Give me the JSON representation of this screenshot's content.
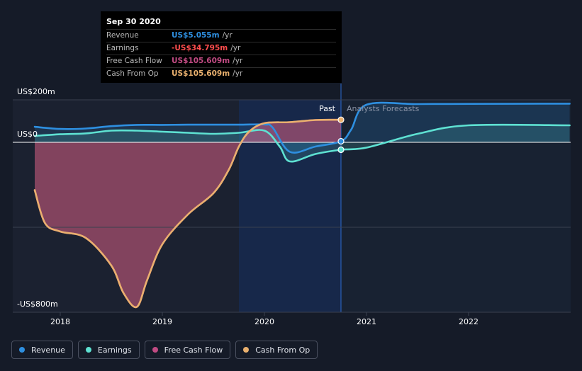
{
  "colors": {
    "background": "#151b28",
    "revenue": "#2e8fe0",
    "earnings": "#5ee1d2",
    "free_cash_flow": "#c14b83",
    "cash_from_op": "#e9b06e"
  },
  "tooltip": {
    "date": "Sep 30 2020",
    "rows": [
      {
        "name": "Revenue",
        "value": "US$5.055m",
        "unit": "/yr",
        "color": "#2e8fe0"
      },
      {
        "name": "Earnings",
        "value": "-US$34.795m",
        "unit": "/yr",
        "color": "#ff4d4d"
      },
      {
        "name": "Free Cash Flow",
        "value": "US$105.609m",
        "unit": "/yr",
        "color": "#c14b83"
      },
      {
        "name": "Cash From Op",
        "value": "US$105.609m",
        "unit": "/yr",
        "color": "#e9b06e"
      }
    ]
  },
  "legend": [
    {
      "label": "Revenue",
      "icon": "revenue-dot",
      "color": "#2e8fe0"
    },
    {
      "label": "Earnings",
      "icon": "earnings-dot",
      "color": "#5ee1d2"
    },
    {
      "label": "Free Cash Flow",
      "icon": "free-cash-flow-dot",
      "color": "#c14b83"
    },
    {
      "label": "Cash From Op",
      "icon": "cash-from-op-dot",
      "color": "#e9b06e"
    }
  ],
  "chart_data": {
    "type": "line",
    "y_tick_labels": [
      "US$200m",
      "US$0",
      "-US$800m"
    ],
    "y_ticks": [
      200,
      0,
      -800
    ],
    "ylim": [
      -800,
      200
    ],
    "xlim": [
      2017.75,
      2022.99
    ],
    "x_tick_labels": [
      "2018",
      "2019",
      "2020",
      "2021",
      "2022"
    ],
    "x_ticks": [
      2018,
      2019,
      2020,
      2021,
      2022
    ],
    "past_label": "Past",
    "forecast_label": "Analysts Forecasts",
    "past_end": 2020.75,
    "highlight_start": 2019.75,
    "grid": "horizontal",
    "series": [
      {
        "name": "Revenue",
        "color": "#2e8fe0",
        "x": [
          2017.75,
          2018.0,
          2018.25,
          2018.5,
          2018.75,
          2019.0,
          2019.25,
          2019.5,
          2019.75,
          2020.0,
          2020.08,
          2020.25,
          2020.5,
          2020.75,
          2020.85,
          2021.0,
          2021.5,
          2022.0,
          2022.99
        ],
        "y": [
          73,
          63,
          65,
          76,
          82,
          82,
          83,
          83,
          83,
          84,
          70,
          -45,
          -20,
          5,
          60,
          177,
          180,
          181,
          182
        ]
      },
      {
        "name": "Earnings",
        "color": "#5ee1d2",
        "x": [
          2017.75,
          2018.0,
          2018.25,
          2018.5,
          2018.75,
          2019.0,
          2019.25,
          2019.5,
          2019.75,
          2020.0,
          2020.15,
          2020.25,
          2020.5,
          2020.75,
          2021.0,
          2021.5,
          2022.0,
          2022.99
        ],
        "y": [
          30,
          38,
          42,
          55,
          55,
          50,
          45,
          40,
          45,
          55,
          -20,
          -90,
          -55,
          -35,
          -25,
          40,
          80,
          80
        ]
      },
      {
        "name": "Free Cash Flow",
        "color": "#c14b83",
        "x": [
          2017.75,
          2017.85,
          2018.0,
          2018.25,
          2018.5,
          2018.62,
          2018.75,
          2018.85,
          2019.0,
          2019.25,
          2019.5,
          2019.65,
          2019.75,
          2019.85,
          2020.0,
          2020.25,
          2020.5,
          2020.75
        ],
        "y": [
          -225,
          -380,
          -420,
          -450,
          -580,
          -710,
          -775,
          -650,
          -480,
          -340,
          -240,
          -130,
          -20,
          50,
          90,
          95,
          105,
          106
        ]
      },
      {
        "name": "Cash From Op",
        "color": "#e9b06e",
        "x": [
          2017.75,
          2017.85,
          2018.0,
          2018.25,
          2018.5,
          2018.62,
          2018.75,
          2018.85,
          2019.0,
          2019.25,
          2019.5,
          2019.65,
          2019.75,
          2019.85,
          2020.0,
          2020.25,
          2020.5,
          2020.75
        ],
        "y": [
          -225,
          -380,
          -420,
          -450,
          -580,
          -710,
          -775,
          -650,
          -480,
          -340,
          -240,
          -130,
          -20,
          50,
          90,
          95,
          105,
          106
        ]
      }
    ]
  }
}
